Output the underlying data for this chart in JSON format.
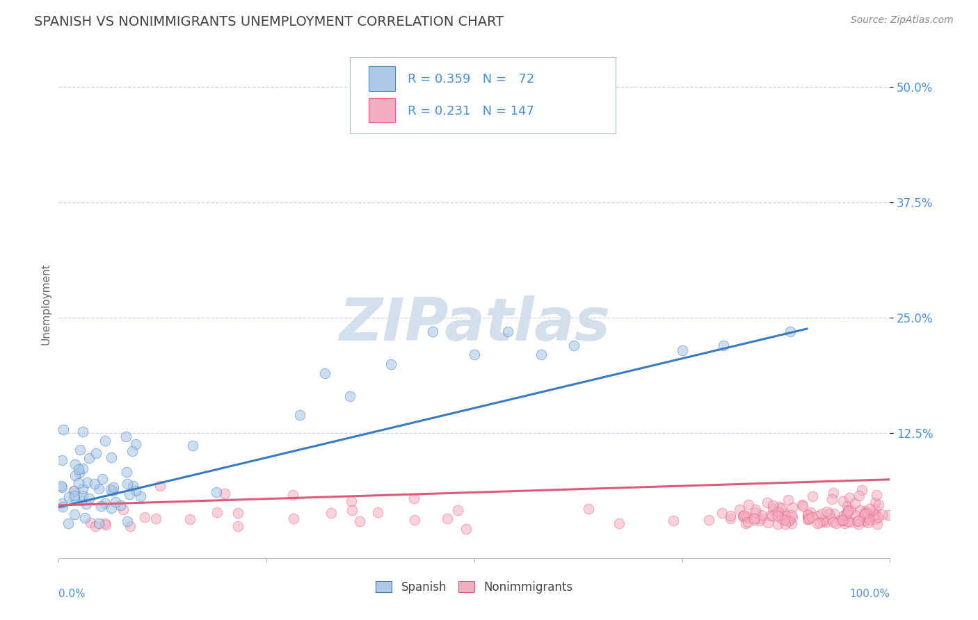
{
  "title": "SPANISH VS NONIMMIGRANTS UNEMPLOYMENT CORRELATION CHART",
  "source_text": "Source: ZipAtlas.com",
  "ylabel": "Unemployment",
  "ytick_labels": [
    "12.5%",
    "25.0%",
    "37.5%",
    "50.0%"
  ],
  "ytick_values": [
    0.125,
    0.25,
    0.375,
    0.5
  ],
  "xlim": [
    0.0,
    1.0
  ],
  "ylim": [
    -0.01,
    0.54
  ],
  "spanish_R": 0.359,
  "spanish_N": 72,
  "nonimm_R": 0.231,
  "nonimm_N": 147,
  "spanish_color": "#adc8e8",
  "nonimm_color": "#f5adc0",
  "spanish_line_color": "#3a7abf",
  "nonimm_line_color": "#e05878",
  "title_color": "#444444",
  "source_color": "#888888",
  "ytick_color": "#4a90d9",
  "axis_label_color": "#666666",
  "grid_color": "#c8d4e8",
  "background_color": "#ffffff",
  "title_fontsize": 14,
  "source_fontsize": 10,
  "legend_fontsize": 13,
  "axis_fontsize": 11,
  "watermark_text": "ZIPatlas",
  "watermark_color": "#d0dcea",
  "watermark_alpha": 0.9,
  "sp_trend_x0": 0.0,
  "sp_trend_y0": 0.045,
  "sp_trend_x1": 0.9,
  "sp_trend_y1": 0.238,
  "ni_trend_x0": 0.0,
  "ni_trend_y0": 0.047,
  "ni_trend_x1": 1.0,
  "ni_trend_y1": 0.075
}
